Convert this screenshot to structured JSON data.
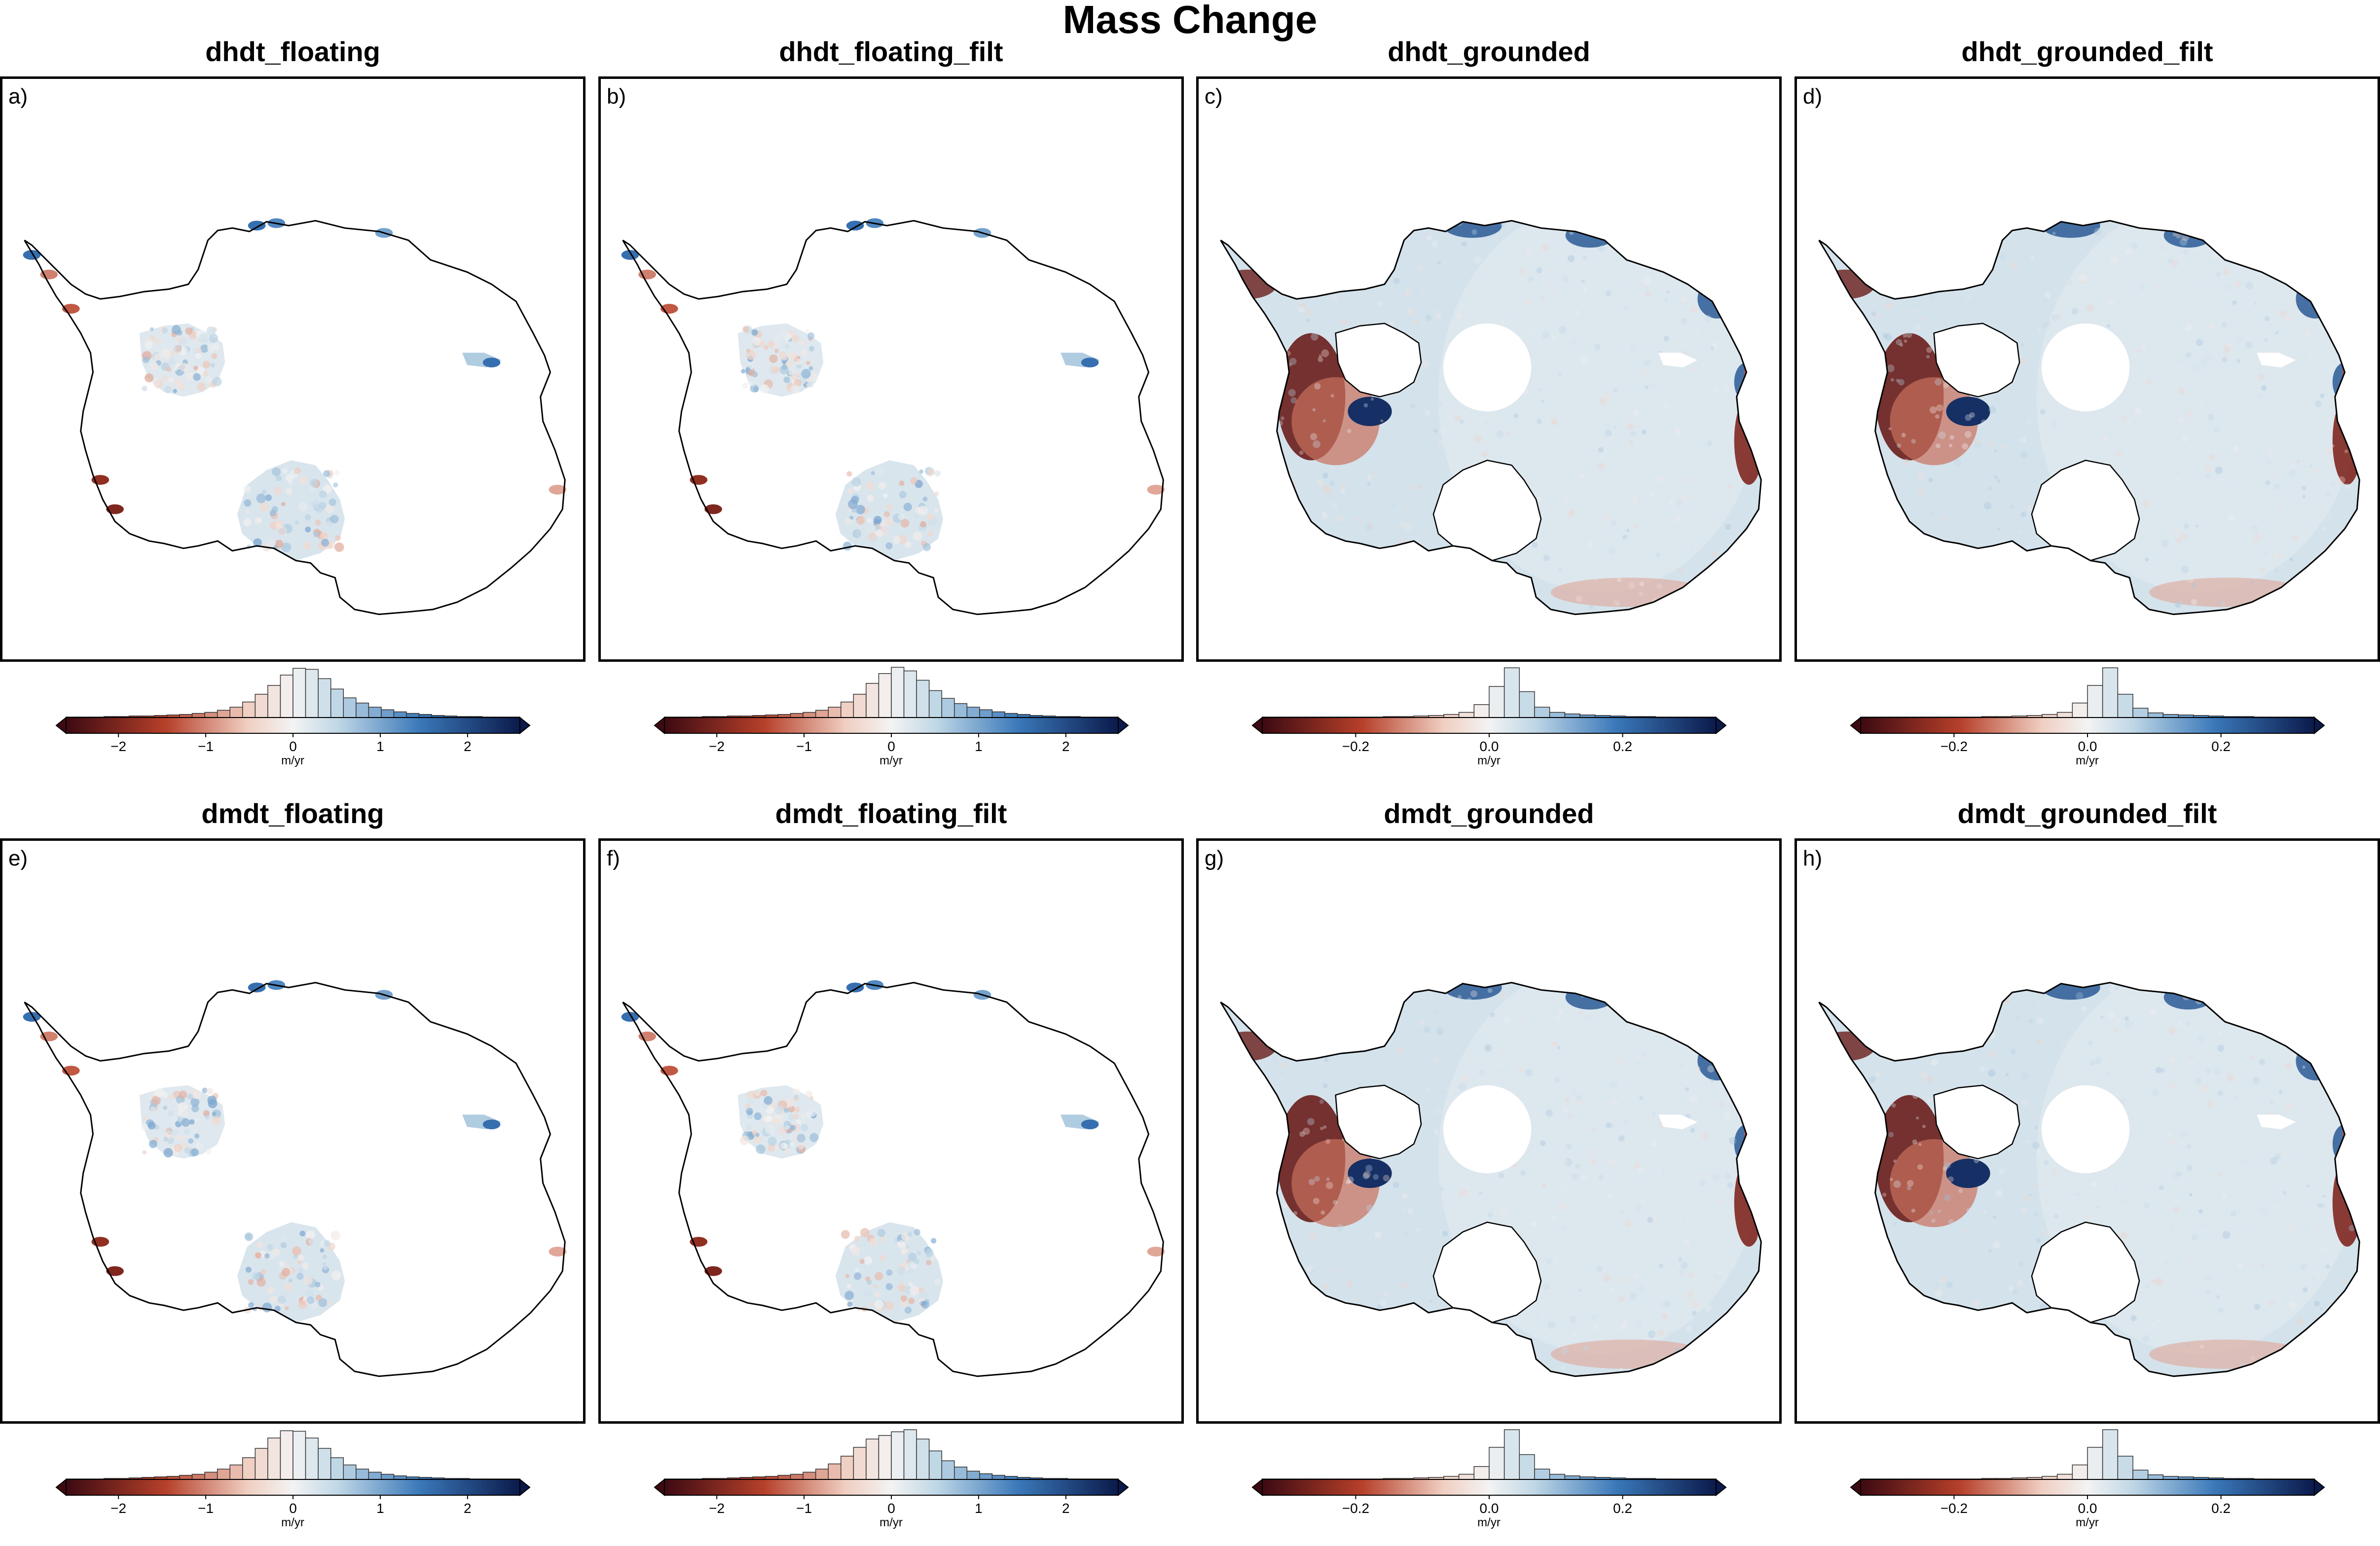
{
  "title": "Mass Change",
  "colors": {
    "neg_dark": "#3d0a12",
    "neg_mid": "#b6402a",
    "neg_light": "#f0cfc2",
    "zero": "#f3f3f3",
    "pos_light": "#bfd7e6",
    "pos_mid": "#3a78b9",
    "pos_dark": "#0b1a4b",
    "outline": "#000000"
  },
  "panels": [
    {
      "letter": "a)",
      "title": "dhdt_floating",
      "kind": "floating",
      "unit": "m/yr",
      "ticks": [
        "−2",
        "−1",
        "0",
        "1",
        "2"
      ],
      "tick_values": [
        -2,
        -1,
        0,
        1,
        2
      ],
      "range": [
        -2.6,
        2.6
      ],
      "histogram": [
        0.01,
        0.01,
        0.01,
        0.02,
        0.02,
        0.03,
        0.03,
        0.04,
        0.05,
        0.06,
        0.08,
        0.1,
        0.14,
        0.2,
        0.3,
        0.45,
        0.62,
        0.82,
        0.95,
        0.93,
        0.75,
        0.55,
        0.38,
        0.28,
        0.2,
        0.15,
        0.11,
        0.08,
        0.06,
        0.04,
        0.03,
        0.02,
        0.02,
        0.01,
        0.01,
        0.01
      ]
    },
    {
      "letter": "b)",
      "title": "dhdt_floating_filt",
      "kind": "floating",
      "unit": "m/yr",
      "ticks": [
        "−2",
        "−1",
        "0",
        "1",
        "2"
      ],
      "tick_values": [
        -2,
        -1,
        0,
        1,
        2
      ],
      "range": [
        -2.6,
        2.6
      ],
      "histogram": [
        0.01,
        0.01,
        0.01,
        0.02,
        0.02,
        0.03,
        0.03,
        0.04,
        0.05,
        0.06,
        0.08,
        0.1,
        0.14,
        0.2,
        0.3,
        0.45,
        0.66,
        0.85,
        0.97,
        0.9,
        0.72,
        0.52,
        0.37,
        0.27,
        0.2,
        0.15,
        0.11,
        0.08,
        0.06,
        0.04,
        0.03,
        0.02,
        0.02,
        0.01,
        0.01,
        0.01
      ]
    },
    {
      "letter": "c)",
      "title": "dhdt_grounded",
      "kind": "grounded",
      "unit": "m/yr",
      "ticks": [
        "−0.2",
        "0.0",
        "0.2"
      ],
      "tick_values": [
        -0.2,
        0.0,
        0.2
      ],
      "range": [
        -0.34,
        0.34
      ],
      "histogram": [
        0.01,
        0.01,
        0.01,
        0.01,
        0.01,
        0.01,
        0.01,
        0.01,
        0.02,
        0.02,
        0.03,
        0.04,
        0.06,
        0.1,
        0.25,
        0.6,
        0.96,
        0.5,
        0.2,
        0.1,
        0.07,
        0.05,
        0.04,
        0.03,
        0.02,
        0.02,
        0.01,
        0.01,
        0.01,
        0.01
      ]
    },
    {
      "letter": "d)",
      "title": "dhdt_grounded_filt",
      "kind": "grounded",
      "unit": "m/yr",
      "ticks": [
        "−0.2",
        "0.0",
        "0.2"
      ],
      "tick_values": [
        -0.2,
        0.0,
        0.2
      ],
      "range": [
        -0.34,
        0.34
      ],
      "histogram": [
        0.01,
        0.01,
        0.01,
        0.01,
        0.01,
        0.01,
        0.01,
        0.01,
        0.02,
        0.02,
        0.03,
        0.04,
        0.06,
        0.1,
        0.28,
        0.62,
        0.96,
        0.45,
        0.18,
        0.09,
        0.06,
        0.05,
        0.04,
        0.03,
        0.02,
        0.02,
        0.01,
        0.01,
        0.01,
        0.01
      ]
    },
    {
      "letter": "e)",
      "title": "dmdt_floating",
      "kind": "floating",
      "unit": "m/yr",
      "ticks": [
        "−2",
        "−1",
        "0",
        "1",
        "2"
      ],
      "tick_values": [
        -2,
        -1,
        0,
        1,
        2
      ],
      "range": [
        -2.6,
        2.6
      ],
      "histogram": [
        0.01,
        0.01,
        0.01,
        0.02,
        0.02,
        0.03,
        0.04,
        0.05,
        0.06,
        0.08,
        0.1,
        0.14,
        0.2,
        0.28,
        0.42,
        0.6,
        0.8,
        0.94,
        0.93,
        0.8,
        0.6,
        0.42,
        0.28,
        0.2,
        0.14,
        0.1,
        0.07,
        0.05,
        0.04,
        0.03,
        0.02,
        0.02,
        0.01,
        0.01,
        0.01,
        0.01
      ]
    },
    {
      "letter": "f)",
      "title": "dmdt_floating_filt",
      "kind": "floating",
      "unit": "m/yr",
      "ticks": [
        "−2",
        "−1",
        "0",
        "1",
        "2"
      ],
      "tick_values": [
        -2,
        -1,
        0,
        1,
        2
      ],
      "range": [
        -2.6,
        2.6
      ],
      "histogram": [
        0.01,
        0.01,
        0.01,
        0.02,
        0.02,
        0.03,
        0.04,
        0.05,
        0.06,
        0.08,
        0.1,
        0.14,
        0.2,
        0.3,
        0.45,
        0.62,
        0.78,
        0.85,
        0.92,
        0.96,
        0.78,
        0.55,
        0.36,
        0.24,
        0.16,
        0.11,
        0.08,
        0.06,
        0.04,
        0.03,
        0.02,
        0.02,
        0.01,
        0.01,
        0.01,
        0.01
      ]
    },
    {
      "letter": "g)",
      "title": "dmdt_grounded",
      "kind": "grounded",
      "unit": "m/yr",
      "ticks": [
        "−0.2",
        "0.0",
        "0.2"
      ],
      "tick_values": [
        -0.2,
        0.0,
        0.2
      ],
      "range": [
        -0.34,
        0.34
      ],
      "histogram": [
        0.01,
        0.01,
        0.01,
        0.01,
        0.01,
        0.01,
        0.01,
        0.01,
        0.02,
        0.02,
        0.03,
        0.04,
        0.06,
        0.1,
        0.25,
        0.62,
        0.96,
        0.48,
        0.2,
        0.1,
        0.07,
        0.05,
        0.04,
        0.03,
        0.02,
        0.02,
        0.01,
        0.01,
        0.01,
        0.01
      ]
    },
    {
      "letter": "h)",
      "title": "dmdt_grounded_filt",
      "kind": "grounded",
      "unit": "m/yr",
      "ticks": [
        "−0.2",
        "0.0",
        "0.2"
      ],
      "tick_values": [
        -0.2,
        0.0,
        0.2
      ],
      "range": [
        -0.34,
        0.34
      ],
      "histogram": [
        0.01,
        0.01,
        0.01,
        0.01,
        0.01,
        0.01,
        0.01,
        0.01,
        0.02,
        0.02,
        0.03,
        0.04,
        0.06,
        0.1,
        0.28,
        0.62,
        0.96,
        0.45,
        0.18,
        0.09,
        0.06,
        0.05,
        0.04,
        0.03,
        0.02,
        0.02,
        0.01,
        0.01,
        0.01,
        0.01
      ]
    }
  ]
}
